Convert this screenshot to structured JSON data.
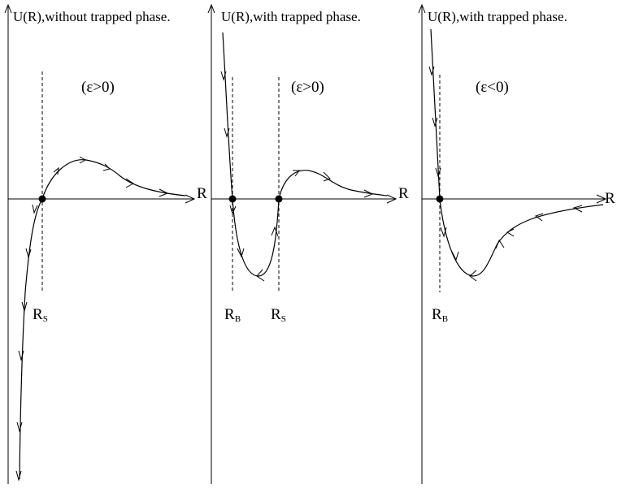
{
  "panels": [
    {
      "title": "U(R),without trapped phase.",
      "condition": "(ε>0)",
      "axis_label": "R",
      "radius_labels": [
        {
          "main": "R",
          "sub": "S"
        }
      ]
    },
    {
      "title": "U(R),with trapped phase.",
      "condition": "(ε>0)",
      "axis_label": "R",
      "radius_labels": [
        {
          "main": "R",
          "sub": "B"
        },
        {
          "main": "R",
          "sub": "S"
        }
      ]
    },
    {
      "title": "U(R),with trapped phase.",
      "condition": "(ε<0)",
      "axis_label": "R",
      "radius_labels": [
        {
          "main": "R",
          "sub": "B"
        }
      ]
    }
  ]
}
